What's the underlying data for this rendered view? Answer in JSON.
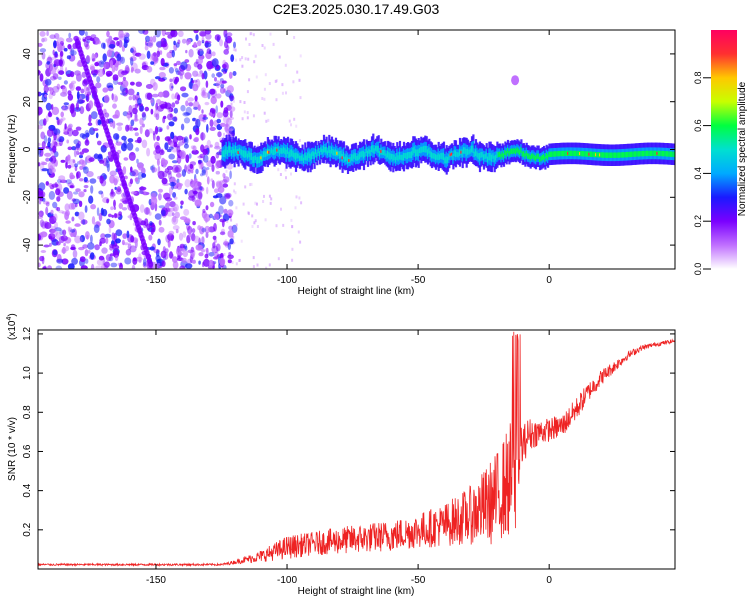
{
  "title": "C2E3.2025.030.17.49.G03",
  "chart_data": [
    {
      "type": "heatmap",
      "xlabel": "Height of straight line (km)",
      "ylabel": "Frequency (Hz)",
      "xlim": [
        -195,
        48
      ],
      "ylim": [
        -50,
        50
      ],
      "x_ticks": [
        -150,
        -100,
        -50,
        0
      ],
      "y_ticks": [
        -40,
        -20,
        0,
        20,
        40
      ],
      "colorbar": {
        "label": "Normalized spectral amplitude",
        "range": [
          0,
          1
        ],
        "ticks": [
          0.0,
          0.2,
          0.4,
          0.6,
          0.8
        ],
        "tick_labels": [
          "0.0",
          "0.2",
          "0.4",
          "0.6",
          "0.8"
        ],
        "colors": [
          "#ffffff",
          "#c070ff",
          "#7a00ff",
          "#1a1aff",
          "#00aaff",
          "#00e0d0",
          "#00ff40",
          "#c8ff00",
          "#ffc800",
          "#ff3030",
          "#ff0060"
        ]
      },
      "features": [
        {
          "name": "signal band",
          "x_range": [
            -125,
            48
          ],
          "center_hz": -2,
          "half_width_hz": 4
        },
        {
          "name": "diagonal streak",
          "x": [
            -180,
            -152
          ],
          "y": [
            45,
            -48
          ]
        },
        {
          "name": "small blob",
          "x": -13,
          "y": 29
        }
      ]
    },
    {
      "type": "line",
      "xlabel": "Height of straight line (km)",
      "ylabel": "SNR (10 * v/v)",
      "multiplier": "(x10",
      "multiplier_exp": "4",
      "multiplier_close": ")",
      "xlim": [
        -195,
        48
      ],
      "ylim": [
        0,
        1.22
      ],
      "x_ticks": [
        -150,
        -100,
        -50,
        0
      ],
      "y_ticks": [
        0.2,
        0.4,
        0.6,
        0.8,
        1.0,
        1.2
      ],
      "y_tick_labels": [
        "0.2",
        "0.4",
        "0.6",
        "0.8",
        "1.0",
        "1.2"
      ],
      "color": "#ee2222",
      "envelope": {
        "x": [
          -195,
          -125,
          -120,
          -110,
          -100,
          -90,
          -80,
          -70,
          -60,
          -50,
          -40,
          -30,
          -25,
          -20,
          -18,
          -15,
          -13,
          -10,
          -8,
          -5,
          0,
          5,
          10,
          15,
          20,
          25,
          30,
          35,
          40,
          48
        ],
        "base": [
          0.02,
          0.02,
          0.03,
          0.05,
          0.08,
          0.1,
          0.11,
          0.12,
          0.13,
          0.15,
          0.17,
          0.2,
          0.22,
          0.24,
          0.28,
          0.3,
          0.36,
          0.58,
          0.64,
          0.66,
          0.68,
          0.7,
          0.78,
          0.88,
          0.96,
          1.02,
          1.08,
          1.12,
          1.14,
          1.16
        ],
        "amp": [
          0.01,
          0.01,
          0.02,
          0.06,
          0.12,
          0.12,
          0.14,
          0.15,
          0.16,
          0.18,
          0.22,
          0.3,
          0.38,
          0.48,
          0.5,
          0.6,
          0.8,
          0.2,
          0.18,
          0.14,
          0.12,
          0.12,
          0.12,
          0.1,
          0.08,
          0.06,
          0.04,
          0.03,
          0.02,
          0.02
        ]
      }
    }
  ]
}
